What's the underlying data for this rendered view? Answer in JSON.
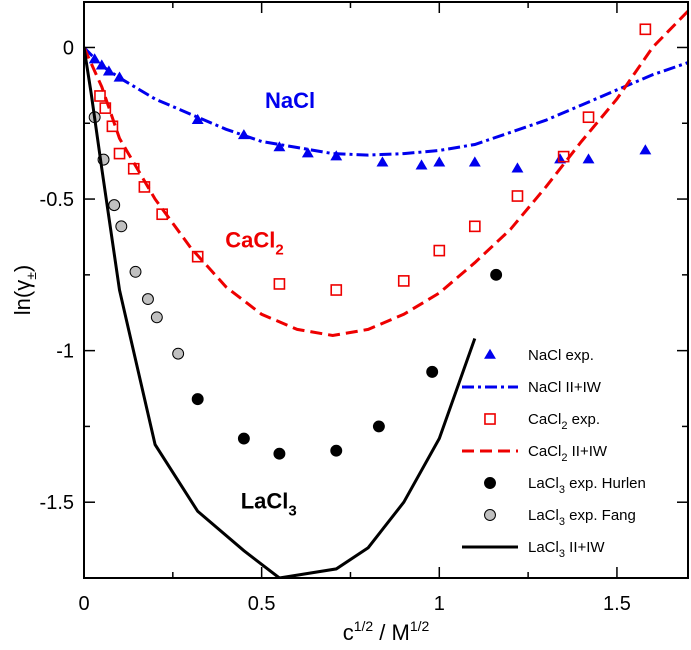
{
  "chart_data": {
    "type": "scatter",
    "xlabel_base": "c",
    "xlabel_sup1": "1/2",
    "xlabel_mid": " / M",
    "xlabel_sup2": "1/2",
    "ylabel_base": "ln(γ",
    "ylabel_sub": "±",
    "ylabel_end": ")",
    "xlim": [
      0,
      1.7
    ],
    "ylim": [
      -1.75,
      0.15
    ],
    "x_ticks": [
      0,
      0.5,
      1,
      1.5
    ],
    "x_tick_labels": [
      "0",
      "0.5",
      "1",
      "1.5"
    ],
    "y_ticks": [
      0,
      -0.5,
      -1,
      -1.5
    ],
    "y_tick_labels": [
      "0",
      "-0.5",
      "-1",
      "-1.5"
    ],
    "grid": false,
    "legend_position": "bottom-right",
    "annotations": [
      {
        "base": "NaCl",
        "sub": "",
        "color": "#0000ee",
        "x": 0.58,
        "y": -0.2
      },
      {
        "base": "CaCl",
        "sub": "2",
        "color": "#ee0000",
        "x": 0.48,
        "y": -0.66
      },
      {
        "base": "LaCl",
        "sub": "3",
        "color": "#000000",
        "x": 0.52,
        "y": -1.52
      }
    ],
    "series": [
      {
        "name_base": "NaCl exp.",
        "name_sub": "",
        "name_end": "",
        "kind": "markers",
        "marker": "triangle",
        "color": "#0000ee",
        "points": [
          [
            0.03,
            -0.04
          ],
          [
            0.05,
            -0.06
          ],
          [
            0.07,
            -0.08
          ],
          [
            0.1,
            -0.1
          ],
          [
            0.32,
            -0.24
          ],
          [
            0.45,
            -0.29
          ],
          [
            0.55,
            -0.33
          ],
          [
            0.63,
            -0.35
          ],
          [
            0.71,
            -0.36
          ],
          [
            0.84,
            -0.38
          ],
          [
            0.95,
            -0.39
          ],
          [
            1.0,
            -0.38
          ],
          [
            1.1,
            -0.38
          ],
          [
            1.22,
            -0.4
          ],
          [
            1.34,
            -0.37
          ],
          [
            1.42,
            -0.37
          ],
          [
            1.58,
            -0.34
          ]
        ]
      },
      {
        "name_base": "NaCl II+IW",
        "name_sub": "",
        "name_end": "",
        "kind": "line",
        "dash": "12,4,3,4",
        "color": "#0000ee",
        "points": [
          [
            0,
            0
          ],
          [
            0.05,
            -0.06
          ],
          [
            0.1,
            -0.1
          ],
          [
            0.2,
            -0.17
          ],
          [
            0.3,
            -0.22
          ],
          [
            0.4,
            -0.27
          ],
          [
            0.5,
            -0.31
          ],
          [
            0.6,
            -0.33
          ],
          [
            0.7,
            -0.35
          ],
          [
            0.8,
            -0.355
          ],
          [
            0.9,
            -0.35
          ],
          [
            1.0,
            -0.34
          ],
          [
            1.1,
            -0.32
          ],
          [
            1.2,
            -0.28
          ],
          [
            1.3,
            -0.24
          ],
          [
            1.4,
            -0.19
          ],
          [
            1.5,
            -0.14
          ],
          [
            1.6,
            -0.09
          ],
          [
            1.7,
            -0.05
          ]
        ]
      },
      {
        "name_base": "CaCl",
        "name_sub": "2",
        "name_end": " exp.",
        "kind": "markers",
        "marker": "square",
        "color": "#ee0000",
        "points": [
          [
            0.045,
            -0.16
          ],
          [
            0.06,
            -0.2
          ],
          [
            0.08,
            -0.26
          ],
          [
            0.1,
            -0.35
          ],
          [
            0.14,
            -0.4
          ],
          [
            0.17,
            -0.46
          ],
          [
            0.22,
            -0.55
          ],
          [
            0.32,
            -0.69
          ],
          [
            0.55,
            -0.78
          ],
          [
            0.71,
            -0.8
          ],
          [
            0.9,
            -0.77
          ],
          [
            1.0,
            -0.67
          ],
          [
            1.1,
            -0.59
          ],
          [
            1.22,
            -0.49
          ],
          [
            1.35,
            -0.36
          ],
          [
            1.42,
            -0.23
          ],
          [
            1.58,
            0.06
          ]
        ]
      },
      {
        "name_base": "CaCl",
        "name_sub": "2",
        "name_end": " II+IW",
        "kind": "line",
        "dash": "12,6",
        "color": "#ee0000",
        "points": [
          [
            0,
            0
          ],
          [
            0.05,
            -0.13
          ],
          [
            0.1,
            -0.3
          ],
          [
            0.2,
            -0.5
          ],
          [
            0.3,
            -0.66
          ],
          [
            0.4,
            -0.79
          ],
          [
            0.5,
            -0.88
          ],
          [
            0.6,
            -0.93
          ],
          [
            0.7,
            -0.95
          ],
          [
            0.8,
            -0.93
          ],
          [
            0.9,
            -0.88
          ],
          [
            1.0,
            -0.81
          ],
          [
            1.1,
            -0.71
          ],
          [
            1.2,
            -0.6
          ],
          [
            1.3,
            -0.46
          ],
          [
            1.4,
            -0.31
          ],
          [
            1.5,
            -0.17
          ],
          [
            1.6,
            0.0
          ],
          [
            1.7,
            0.12
          ]
        ]
      },
      {
        "name_base": "LaCl",
        "name_sub": "3",
        "name_end": " exp. Hurlen",
        "kind": "markers",
        "marker": "circle",
        "color": "#000000",
        "fill": "#000000",
        "points": [
          [
            0.32,
            -1.16
          ],
          [
            0.45,
            -1.29
          ],
          [
            0.55,
            -1.34
          ],
          [
            0.71,
            -1.33
          ],
          [
            0.83,
            -1.25
          ],
          [
            0.98,
            -1.07
          ],
          [
            1.16,
            -0.75
          ]
        ]
      },
      {
        "name_base": "LaCl",
        "name_sub": "3",
        "name_end": " exp. Fang",
        "kind": "markers",
        "marker": "circle",
        "color": "#000000",
        "fill": "#c0c0c0",
        "points": [
          [
            0.03,
            -0.23
          ],
          [
            0.055,
            -0.37
          ],
          [
            0.085,
            -0.52
          ],
          [
            0.105,
            -0.59
          ],
          [
            0.145,
            -0.74
          ],
          [
            0.18,
            -0.83
          ],
          [
            0.205,
            -0.89
          ],
          [
            0.265,
            -1.01
          ]
        ]
      },
      {
        "name_base": "LaCl",
        "name_sub": "3",
        "name_end": " II+IW",
        "kind": "line",
        "dash": "",
        "color": "#000000",
        "points": [
          [
            0,
            0
          ],
          [
            0.02,
            -0.15
          ],
          [
            0.05,
            -0.4
          ],
          [
            0.1,
            -0.8
          ],
          [
            0.2,
            -1.31
          ],
          [
            0.32,
            -1.53
          ],
          [
            0.45,
            -1.66
          ],
          [
            0.55,
            -1.75
          ],
          [
            0.71,
            -1.72
          ],
          [
            0.8,
            -1.65
          ],
          [
            0.9,
            -1.5
          ],
          [
            1.0,
            -1.29
          ],
          [
            1.1,
            -0.96
          ]
        ]
      }
    ]
  }
}
